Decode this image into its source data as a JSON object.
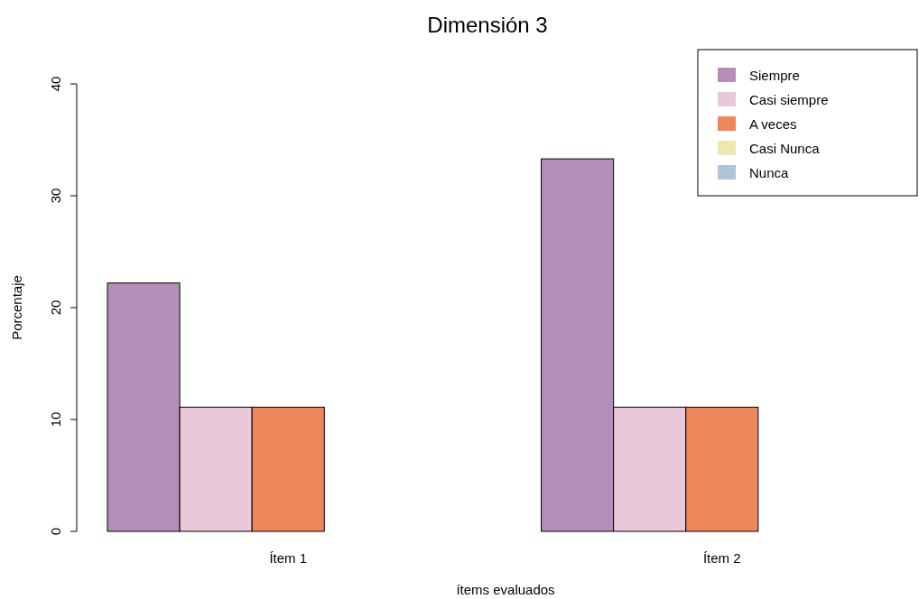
{
  "chart_data": {
    "type": "bar",
    "title": "Dimensión 3",
    "xlabel": "ítems evaluados",
    "ylabel": "Porcentaje",
    "categories": [
      "Ítem 1",
      "Ítem 2"
    ],
    "series": [
      {
        "name": "Siempre",
        "color": "#b48eb9",
        "values": [
          22.2,
          33.3
        ]
      },
      {
        "name": "Casi siempre",
        "color": "#eac8d9",
        "values": [
          11.1,
          11.1
        ]
      },
      {
        "name": "A veces",
        "color": "#ee875c",
        "values": [
          11.1,
          11.1
        ]
      },
      {
        "name": "Casi Nunca",
        "color": "#eee8b0",
        "values": [
          0,
          0
        ]
      },
      {
        "name": "Nunca",
        "color": "#adc4d9",
        "values": [
          0,
          0
        ]
      }
    ],
    "ylim": [
      0,
      40
    ],
    "yticks": [
      0,
      10,
      20,
      30,
      40
    ],
    "legend": "top right"
  }
}
